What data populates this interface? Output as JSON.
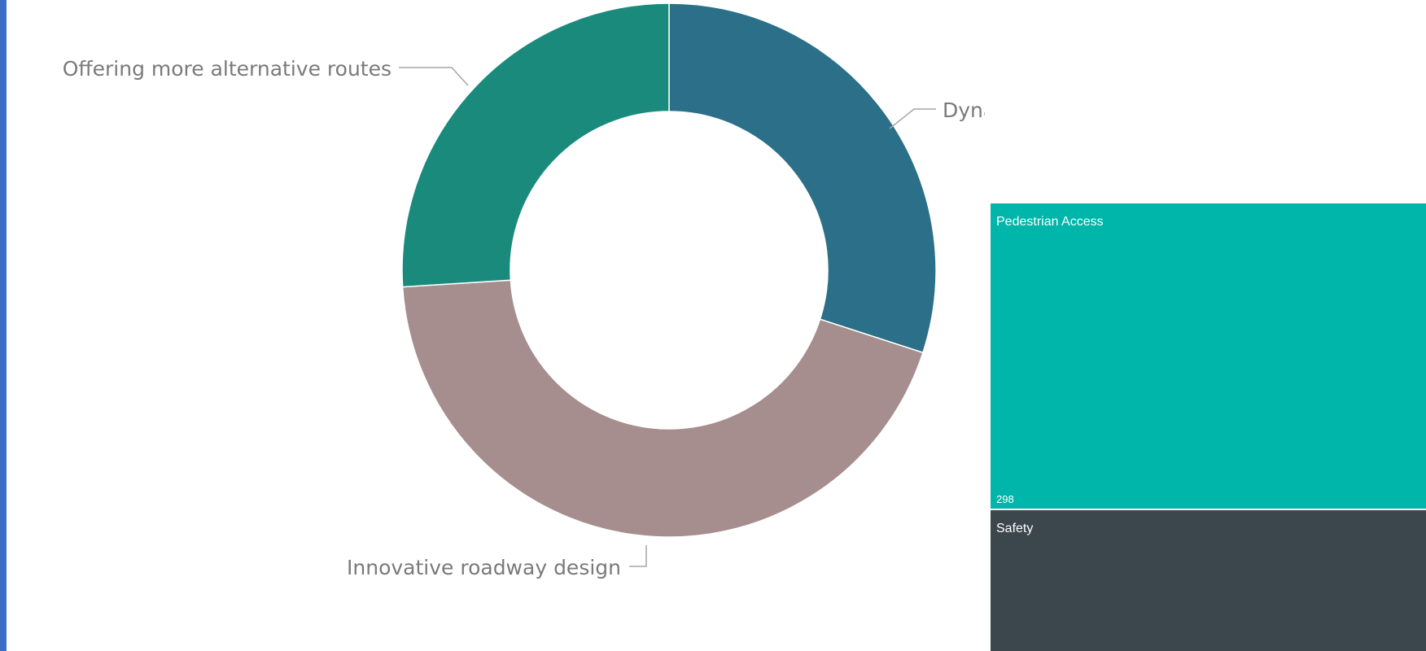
{
  "theme": {
    "accent": "#3a6fc4"
  },
  "chart_data": [
    {
      "type": "pie",
      "subtype": "donut",
      "title": "",
      "legend": "none",
      "slices": [
        {
          "label": "Dynamic messaging signs",
          "value": 30,
          "color": "#2b6f88"
        },
        {
          "label": "Innovative roadway design",
          "value": 44,
          "color": "#a68d8e"
        },
        {
          "label": "Offering more alternative routes",
          "value": 26,
          "color": "#1a8a7d"
        }
      ]
    },
    {
      "type": "treemap",
      "title": "",
      "tiles": [
        {
          "label": "Pedestrian Access",
          "value": 298,
          "value_label": "298",
          "color": "#00b5a9"
        },
        {
          "label": "Safety",
          "value_label": "",
          "color": "#3b474d"
        }
      ]
    }
  ]
}
